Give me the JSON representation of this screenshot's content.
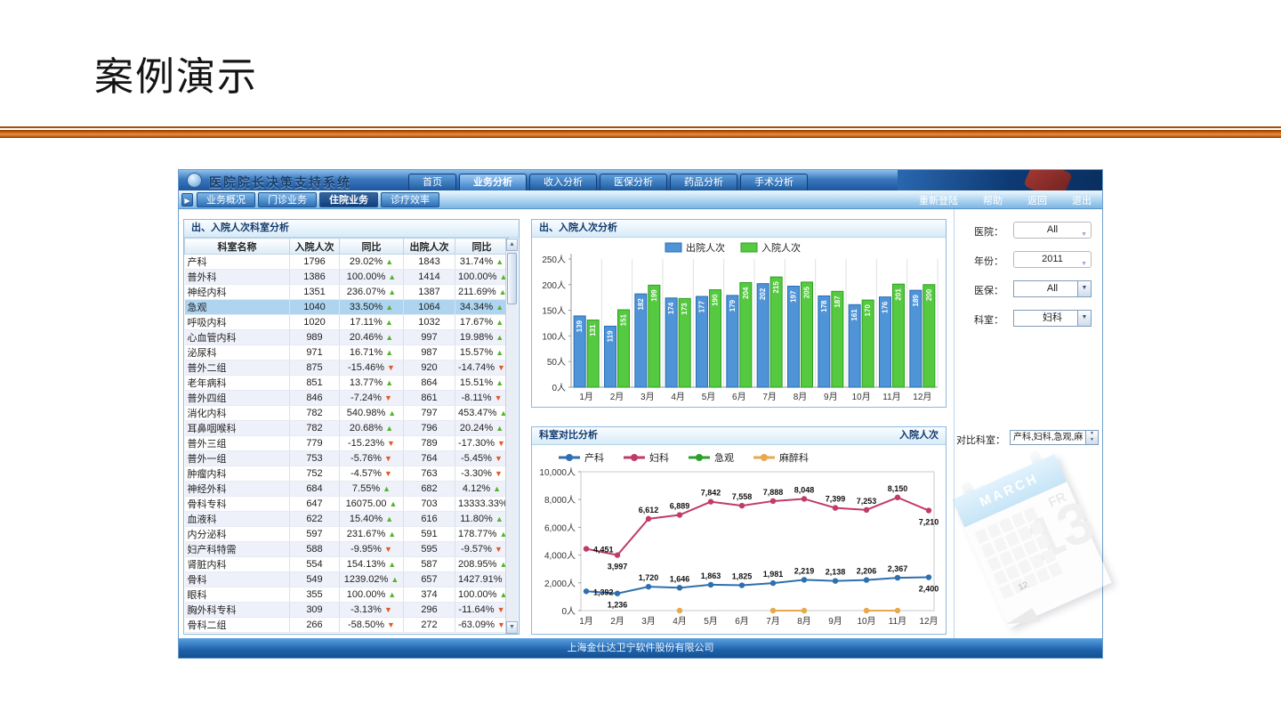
{
  "slide": {
    "title": "案例演示"
  },
  "app": {
    "title": "医院院长决策支持系统",
    "nav_tabs": [
      {
        "label": "首页",
        "active": false
      },
      {
        "label": "业务分析",
        "active": true
      },
      {
        "label": "收入分析",
        "active": false
      },
      {
        "label": "医保分析",
        "active": false
      },
      {
        "label": "药品分析",
        "active": false
      },
      {
        "label": "手术分析",
        "active": false
      }
    ],
    "sub_tabs": [
      {
        "label": "业务概况",
        "active": false
      },
      {
        "label": "门诊业务",
        "active": false
      },
      {
        "label": "住院业务",
        "active": true
      },
      {
        "label": "诊疗效率",
        "active": false
      }
    ],
    "top_links": [
      "重新登陆",
      "帮助",
      "返回",
      "退出"
    ],
    "footer": "上海金仕达卫宁软件股份有限公司"
  },
  "table_panel": {
    "title": "出、入院人次科室分析",
    "columns": [
      "科室名称",
      "入院人次",
      "同比",
      "出院人次",
      "同比"
    ],
    "rows": [
      {
        "name": "产科",
        "in_count": 1796,
        "in_yoy": "29.02%",
        "in_dir": "up",
        "out_count": 1843,
        "out_yoy": "31.74%",
        "out_dir": "up",
        "selected": false
      },
      {
        "name": "普外科",
        "in_count": 1386,
        "in_yoy": "100.00%",
        "in_dir": "up",
        "out_count": 1414,
        "out_yoy": "100.00%",
        "out_dir": "up",
        "selected": false
      },
      {
        "name": "神经内科",
        "in_count": 1351,
        "in_yoy": "236.07%",
        "in_dir": "up",
        "out_count": 1387,
        "out_yoy": "211.69%",
        "out_dir": "up",
        "selected": false
      },
      {
        "name": "急观",
        "in_count": 1040,
        "in_yoy": "33.50%",
        "in_dir": "up",
        "out_count": 1064,
        "out_yoy": "34.34%",
        "out_dir": "up",
        "selected": true
      },
      {
        "name": "呼吸内科",
        "in_count": 1020,
        "in_yoy": "17.11%",
        "in_dir": "up",
        "out_count": 1032,
        "out_yoy": "17.67%",
        "out_dir": "up",
        "selected": false
      },
      {
        "name": "心血管内科",
        "in_count": 989,
        "in_yoy": "20.46%",
        "in_dir": "up",
        "out_count": 997,
        "out_yoy": "19.98%",
        "out_dir": "up",
        "selected": false
      },
      {
        "name": "泌尿科",
        "in_count": 971,
        "in_yoy": "16.71%",
        "in_dir": "up",
        "out_count": 987,
        "out_yoy": "15.57%",
        "out_dir": "up",
        "selected": false
      },
      {
        "name": "普外二组",
        "in_count": 875,
        "in_yoy": "-15.46%",
        "in_dir": "down",
        "out_count": 920,
        "out_yoy": "-14.74%",
        "out_dir": "down",
        "selected": false
      },
      {
        "name": "老年病科",
        "in_count": 851,
        "in_yoy": "13.77%",
        "in_dir": "up",
        "out_count": 864,
        "out_yoy": "15.51%",
        "out_dir": "up",
        "selected": false
      },
      {
        "name": "普外四组",
        "in_count": 846,
        "in_yoy": "-7.24%",
        "in_dir": "down",
        "out_count": 861,
        "out_yoy": "-8.11%",
        "out_dir": "down",
        "selected": false
      },
      {
        "name": "消化内科",
        "in_count": 782,
        "in_yoy": "540.98%",
        "in_dir": "up",
        "out_count": 797,
        "out_yoy": "453.47%",
        "out_dir": "up",
        "selected": false
      },
      {
        "name": "耳鼻咽喉科",
        "in_count": 782,
        "in_yoy": "20.68%",
        "in_dir": "up",
        "out_count": 796,
        "out_yoy": "20.24%",
        "out_dir": "up",
        "selected": false
      },
      {
        "name": "普外三组",
        "in_count": 779,
        "in_yoy": "-15.23%",
        "in_dir": "down",
        "out_count": 789,
        "out_yoy": "-17.30%",
        "out_dir": "down",
        "selected": false
      },
      {
        "name": "普外一组",
        "in_count": 753,
        "in_yoy": "-5.76%",
        "in_dir": "down",
        "out_count": 764,
        "out_yoy": "-5.45%",
        "out_dir": "down",
        "selected": false
      },
      {
        "name": "肿瘤内科",
        "in_count": 752,
        "in_yoy": "-4.57%",
        "in_dir": "down",
        "out_count": 763,
        "out_yoy": "-3.30%",
        "out_dir": "down",
        "selected": false
      },
      {
        "name": "神经外科",
        "in_count": 684,
        "in_yoy": "7.55%",
        "in_dir": "up",
        "out_count": 682,
        "out_yoy": "4.12%",
        "out_dir": "up",
        "selected": false
      },
      {
        "name": "骨科专科",
        "in_count": 647,
        "in_yoy": "16075.00",
        "in_dir": "up",
        "out_count": 703,
        "out_yoy": "13333.33%",
        "out_dir": "up",
        "selected": false
      },
      {
        "name": "血液科",
        "in_count": 622,
        "in_yoy": "15.40%",
        "in_dir": "up",
        "out_count": 616,
        "out_yoy": "11.80%",
        "out_dir": "up",
        "selected": false
      },
      {
        "name": "内分泌科",
        "in_count": 597,
        "in_yoy": "231.67%",
        "in_dir": "up",
        "out_count": 591,
        "out_yoy": "178.77%",
        "out_dir": "up",
        "selected": false
      },
      {
        "name": "妇产科特需",
        "in_count": 588,
        "in_yoy": "-9.95%",
        "in_dir": "down",
        "out_count": 595,
        "out_yoy": "-9.57%",
        "out_dir": "down",
        "selected": false
      },
      {
        "name": "肾脏内科",
        "in_count": 554,
        "in_yoy": "154.13%",
        "in_dir": "up",
        "out_count": 587,
        "out_yoy": "208.95%",
        "out_dir": "up",
        "selected": false
      },
      {
        "name": "骨科",
        "in_count": 549,
        "in_yoy": "1239.02%",
        "in_dir": "up",
        "out_count": 657,
        "out_yoy": "1427.91%",
        "out_dir": "up",
        "selected": false
      },
      {
        "name": "眼科",
        "in_count": 355,
        "in_yoy": "100.00%",
        "in_dir": "up",
        "out_count": 374,
        "out_yoy": "100.00%",
        "out_dir": "up",
        "selected": false
      },
      {
        "name": "胸外科专科",
        "in_count": 309,
        "in_yoy": "-3.13%",
        "in_dir": "down",
        "out_count": 296,
        "out_yoy": "-11.64%",
        "out_dir": "down",
        "selected": false
      },
      {
        "name": "骨科二组",
        "in_count": 266,
        "in_yoy": "-58.50%",
        "in_dir": "down",
        "out_count": 272,
        "out_yoy": "-63.09%",
        "out_dir": "down",
        "selected": false
      }
    ]
  },
  "filters": [
    {
      "label": "医院：",
      "value": "All",
      "style": "flat"
    },
    {
      "label": "年份：",
      "value": "2011",
      "style": "flat"
    },
    {
      "label": "医保：",
      "value": "All",
      "style": "classic"
    },
    {
      "label": "科室：",
      "value": "妇科",
      "style": "classic"
    }
  ],
  "compare": {
    "label": "对比科室：",
    "value": "产科,妇科,急观,麻"
  },
  "calendar_graphic": {
    "month": "MARCH",
    "day_abbrev": "FR",
    "big_number": "13",
    "small_number": "12"
  },
  "chart_data": [
    {
      "type": "bar",
      "title": "出、入院人次分析",
      "categories": [
        "1月",
        "2月",
        "3月",
        "4月",
        "5月",
        "6月",
        "7月",
        "8月",
        "9月",
        "10月",
        "11月",
        "12月"
      ],
      "series": [
        {
          "name": "出院人次",
          "color": "#4f94d6",
          "border": "#2a6db6",
          "values": [
            139,
            119,
            182,
            174,
            177,
            179,
            202,
            197,
            178,
            161,
            176,
            189
          ]
        },
        {
          "name": "入院人次",
          "color": "#55c93f",
          "border": "#2f9e22",
          "values": [
            131,
            151,
            199,
            173,
            190,
            204,
            215,
            205,
            187,
            170,
            201,
            200
          ]
        }
      ],
      "ylim": [
        0,
        250
      ],
      "ytick_step": 50,
      "yunit": "人",
      "legend_position": "top-center",
      "grid": "vertical-separators",
      "value_labels": "rotated-inside"
    },
    {
      "type": "line",
      "title": "科室对比分析",
      "right_label": "入院人次",
      "categories": [
        "1月",
        "2月",
        "3月",
        "4月",
        "5月",
        "6月",
        "7月",
        "8月",
        "9月",
        "10月",
        "11月",
        "12月"
      ],
      "series": [
        {
          "name": "产科",
          "color": "#2e6fae",
          "show_labels": true,
          "values": [
            1392,
            1236,
            1720,
            1646,
            1863,
            1825,
            1981,
            2219,
            2138,
            2206,
            2367,
            2400
          ]
        },
        {
          "name": "妇科",
          "color": "#c13b6a",
          "show_labels": true,
          "values": [
            4451,
            3997,
            6612,
            6889,
            7842,
            7558,
            7888,
            8048,
            7399,
            7253,
            8150,
            7210
          ]
        },
        {
          "name": "急观",
          "color": "#2ba02b",
          "show_labels": false,
          "values": [
            null,
            null,
            null,
            null,
            null,
            null,
            null,
            null,
            null,
            null,
            null,
            null
          ]
        },
        {
          "name": "麻醉科",
          "color": "#e8a84c",
          "show_labels": false,
          "values": [
            null,
            null,
            null,
            0,
            null,
            null,
            0,
            0,
            null,
            0,
            0,
            null
          ]
        }
      ],
      "ylim": [
        0,
        10000
      ],
      "ytick_step": 2000,
      "yunit": "人",
      "legend_position": "top-left",
      "grid": "none",
      "data_labels": true
    }
  ]
}
